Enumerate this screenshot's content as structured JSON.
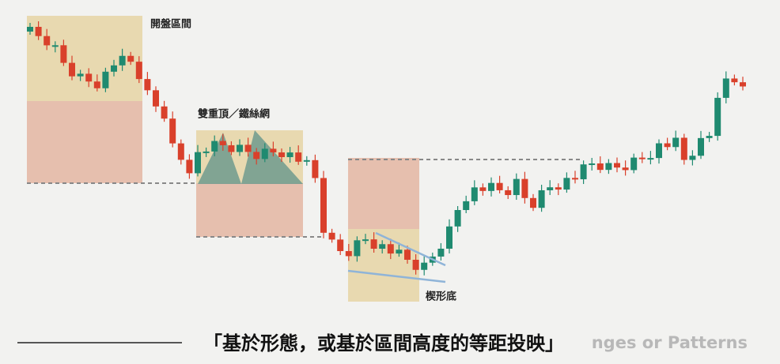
{
  "labels": {
    "opening_range": "開盤區間",
    "double_top": "雙重頂／鐵絲網",
    "wedge_bottom": "楔形底"
  },
  "subtitle": {
    "text": "「基於形態，或基於區間高度的等距投映」",
    "background_text": "nges or Patterns"
  }
}
